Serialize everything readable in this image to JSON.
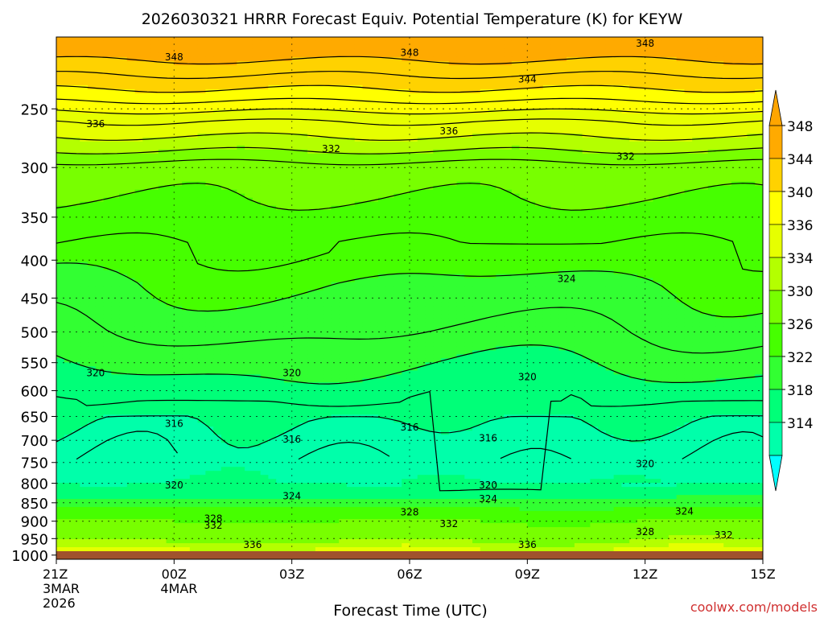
{
  "chart_data": {
    "type": "heatmap",
    "title": "2026030321 HRRR Forecast Equiv. Potential Temperature (K) for KEYW",
    "xlabel": "Forecast Time (UTC)",
    "ylabel": "",
    "watermark": "coolwx.com/models",
    "x_ticks": [
      {
        "value": 0,
        "lines": [
          "21Z",
          "3MAR",
          "2026"
        ]
      },
      {
        "value": 3,
        "lines": [
          "00Z",
          "4MAR"
        ]
      },
      {
        "value": 6,
        "lines": [
          "03Z"
        ]
      },
      {
        "value": 9,
        "lines": [
          "06Z"
        ]
      },
      {
        "value": 12,
        "lines": [
          "09Z"
        ]
      },
      {
        "value": 15,
        "lines": [
          "12Z"
        ]
      },
      {
        "value": 18,
        "lines": [
          "15Z"
        ]
      }
    ],
    "xlim": [
      0,
      18
    ],
    "y_ticks": [
      250,
      300,
      350,
      400,
      450,
      500,
      550,
      600,
      650,
      700,
      750,
      800,
      850,
      900,
      950,
      1000
    ],
    "ylim_hpa": [
      200,
      1013
    ],
    "y_scale": "log-pressure",
    "colorbar": {
      "levels": [
        314,
        318,
        322,
        326,
        330,
        334,
        336,
        340,
        344,
        348
      ],
      "colors": [
        "#00ffd2",
        "#00ffaa",
        "#00ff78",
        "#32ff32",
        "#46ff00",
        "#78ff00",
        "#b4ff00",
        "#e6ff00",
        "#ffff00",
        "#ffd200",
        "#ffaa00"
      ],
      "under_color": "#00ffff",
      "over_color": "#ffa500"
    },
    "profile": {
      "pressure_hpa": [
        210,
        220,
        240,
        260,
        285,
        300,
        330,
        380,
        430,
        500,
        560,
        620,
        660,
        700,
        750,
        800,
        840,
        870,
        900,
        930,
        960,
        990
      ],
      "theta_e_k": [
        349,
        347,
        343,
        338,
        334,
        331,
        330,
        328,
        326,
        324,
        322,
        320,
        318,
        317,
        316,
        318,
        322,
        327,
        330,
        332,
        334,
        337
      ]
    },
    "contour_labels": [
      {
        "text": "348",
        "x": 3.0,
        "p": 213
      },
      {
        "text": "348",
        "x": 9.0,
        "p": 210
      },
      {
        "text": "348",
        "x": 15.0,
        "p": 204
      },
      {
        "text": "344",
        "x": 12.0,
        "p": 228
      },
      {
        "text": "336",
        "x": 1.0,
        "p": 262
      },
      {
        "text": "336",
        "x": 10.0,
        "p": 268
      },
      {
        "text": "332",
        "x": 7.0,
        "p": 283
      },
      {
        "text": "332",
        "x": 14.5,
        "p": 290
      },
      {
        "text": "324",
        "x": 13.0,
        "p": 424
      },
      {
        "text": "320",
        "x": 1.0,
        "p": 568
      },
      {
        "text": "320",
        "x": 6.0,
        "p": 568
      },
      {
        "text": "320",
        "x": 12.0,
        "p": 575
      },
      {
        "text": "316",
        "x": 3.0,
        "p": 665
      },
      {
        "text": "316",
        "x": 9.0,
        "p": 672
      },
      {
        "text": "316",
        "x": 6.0,
        "p": 698
      },
      {
        "text": "316",
        "x": 11.0,
        "p": 695
      },
      {
        "text": "320",
        "x": 15.0,
        "p": 753
      },
      {
        "text": "320",
        "x": 3.0,
        "p": 805
      },
      {
        "text": "320",
        "x": 11.0,
        "p": 805
      },
      {
        "text": "324",
        "x": 6.0,
        "p": 833
      },
      {
        "text": "324",
        "x": 11.0,
        "p": 840
      },
      {
        "text": "324",
        "x": 16.0,
        "p": 873
      },
      {
        "text": "328",
        "x": 4.0,
        "p": 893
      },
      {
        "text": "328",
        "x": 9.0,
        "p": 875
      },
      {
        "text": "328",
        "x": 15.0,
        "p": 930
      },
      {
        "text": "332",
        "x": 4.0,
        "p": 912
      },
      {
        "text": "332",
        "x": 10.0,
        "p": 907
      },
      {
        "text": "332",
        "x": 17.0,
        "p": 940
      },
      {
        "text": "336",
        "x": 5.0,
        "p": 968
      },
      {
        "text": "336",
        "x": 12.0,
        "p": 968
      }
    ]
  }
}
